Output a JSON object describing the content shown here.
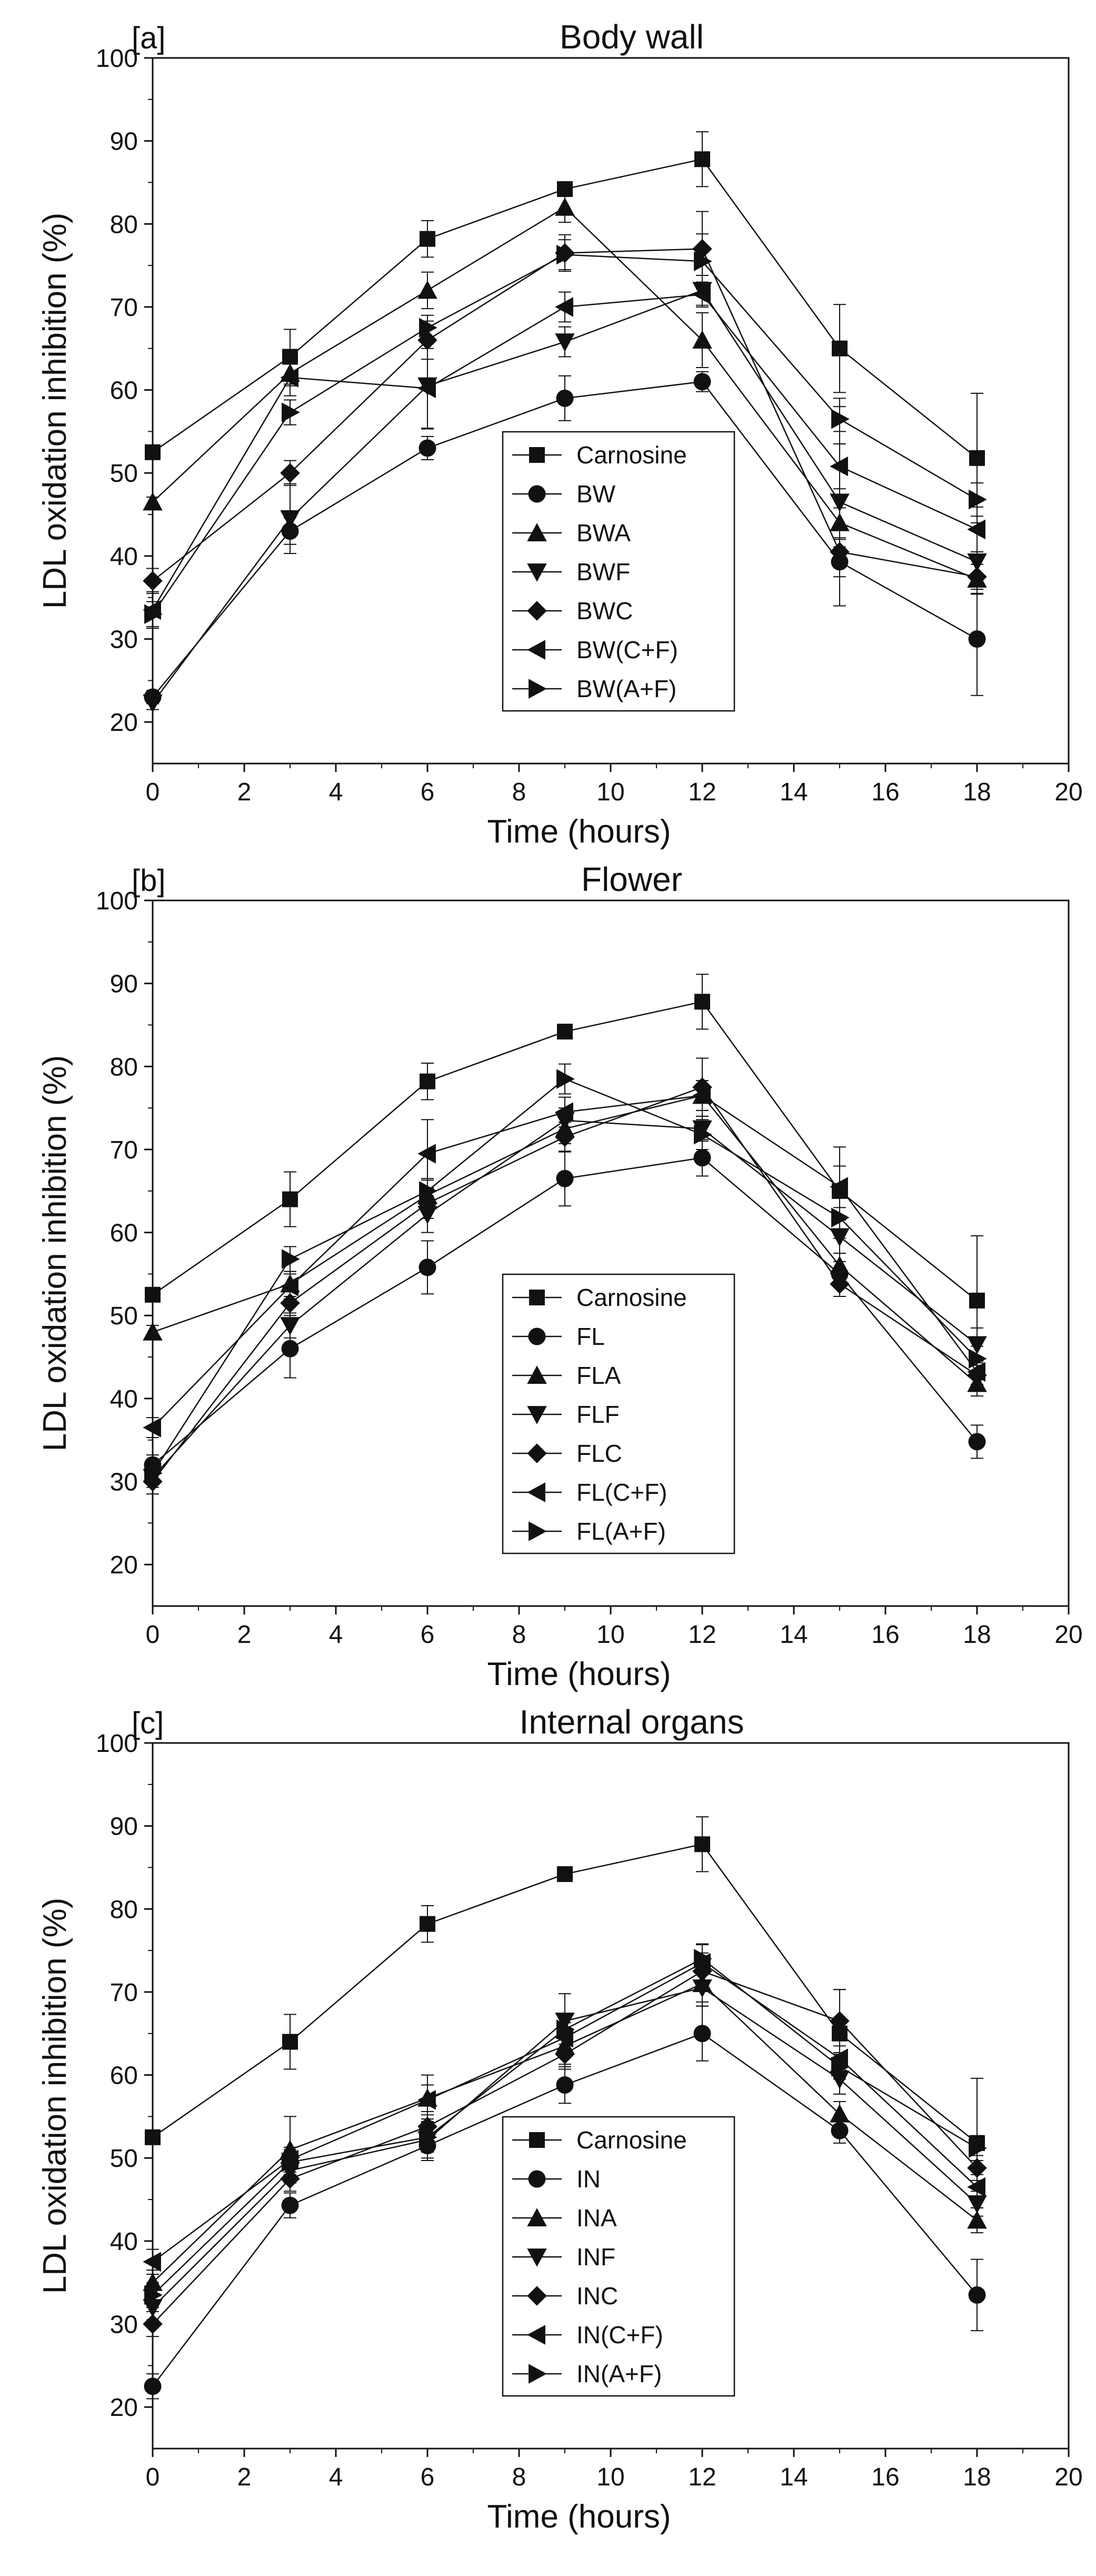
{
  "chart_data": [
    {
      "type": "line",
      "panel_label": "[a]",
      "title": "Body wall",
      "xlabel": "Time (hours)",
      "ylabel": "LDL oxidation inhibition (%)",
      "xlim": [
        0,
        20
      ],
      "ylim": [
        15,
        100
      ],
      "xticks": [
        0,
        2,
        4,
        6,
        8,
        10,
        12,
        14,
        16,
        18,
        20
      ],
      "yticks": [
        20,
        30,
        40,
        50,
        60,
        70,
        80,
        90,
        100
      ],
      "x": [
        0,
        3,
        6,
        9,
        12,
        15,
        18
      ],
      "legend_position": "bottom-center",
      "series": [
        {
          "name": "Carnosine",
          "marker": "square",
          "values": [
            52.5,
            64,
            78.2,
            84.2,
            87.8,
            65,
            51.8
          ],
          "errors": [
            0,
            3.3,
            2.2,
            0.8,
            3.3,
            5.3,
            7.8
          ]
        },
        {
          "name": "BW",
          "marker": "circle",
          "values": [
            23,
            43,
            53,
            59,
            61,
            39.3,
            30
          ],
          "errors": [
            0.8,
            1.6,
            1.4,
            2.7,
            1.2,
            1.8,
            6.8
          ]
        },
        {
          "name": "BWA",
          "marker": "triangle-up",
          "values": [
            46.5,
            62,
            72,
            82,
            66,
            44,
            37.2
          ],
          "errors": [
            0.6,
            1.5,
            2.2,
            1.8,
            3.3,
            1.8,
            1.8
          ]
        },
        {
          "name": "BWF",
          "marker": "triangle-down",
          "values": [
            22.3,
            44.5,
            60.5,
            65.8,
            72,
            46.5,
            39.3
          ],
          "errors": [
            0.8,
            4.2,
            5.2,
            1.8,
            1.8,
            12.5,
            3.8
          ]
        },
        {
          "name": "BWC",
          "marker": "diamond",
          "values": [
            37,
            50,
            66,
            76.5,
            77,
            40.5,
            37.5
          ],
          "errors": [
            1.5,
            1.5,
            2.3,
            2.2,
            4.5,
            1.5,
            1.5
          ]
        },
        {
          "name": "BW(C+F)",
          "marker": "triangle-left",
          "values": [
            33.5,
            61.5,
            60.2,
            70,
            71.5,
            50.8,
            43.2
          ],
          "errors": [
            2.2,
            2.2,
            4.8,
            1.8,
            1.5,
            2.7,
            2.7
          ]
        },
        {
          "name": "BW(A+F)",
          "marker": "triangle-right",
          "values": [
            33,
            57.3,
            67.5,
            76.3,
            75.5,
            56.5,
            46.8
          ],
          "errors": [
            1.5,
            1.5,
            1.5,
            1.8,
            3.3,
            1.5,
            2
          ]
        }
      ]
    },
    {
      "type": "line",
      "panel_label": "[b]",
      "title": "Flower",
      "xlabel": "Time (hours)",
      "ylabel": "LDL oxidation inhibition (%)",
      "xlim": [
        0,
        20
      ],
      "ylim": [
        15,
        100
      ],
      "xticks": [
        0,
        2,
        4,
        6,
        8,
        10,
        12,
        14,
        16,
        18,
        20
      ],
      "yticks": [
        20,
        30,
        40,
        50,
        60,
        70,
        80,
        90,
        100
      ],
      "x": [
        0,
        3,
        6,
        9,
        12,
        15,
        18
      ],
      "legend_position": "bottom-center",
      "series": [
        {
          "name": "Carnosine",
          "marker": "square",
          "values": [
            52.5,
            64,
            78.2,
            84.2,
            87.8,
            65,
            51.8
          ],
          "errors": [
            0,
            3.3,
            2.2,
            0.8,
            3.3,
            5.3,
            7.8
          ]
        },
        {
          "name": "FL",
          "marker": "circle",
          "values": [
            32,
            46,
            55.8,
            66.5,
            69,
            55,
            34.8
          ],
          "errors": [
            1.2,
            3.5,
            3.2,
            3.3,
            2.2,
            1.5,
            2
          ]
        },
        {
          "name": "FLA",
          "marker": "triangle-up",
          "values": [
            48,
            53.8,
            64.5,
            72.5,
            76.5,
            56,
            41.8
          ],
          "errors": [
            0.8,
            1.5,
            1.8,
            1.8,
            1.8,
            1.5,
            1.5
          ]
        },
        {
          "name": "FLF",
          "marker": "triangle-down",
          "values": [
            30.5,
            48.8,
            62.2,
            73.5,
            72.5,
            59.5,
            46.5
          ],
          "errors": [
            1.2,
            1.5,
            2.2,
            1.5,
            1.5,
            2,
            2
          ]
        },
        {
          "name": "FLC",
          "marker": "diamond",
          "values": [
            30,
            51.5,
            63.5,
            71.5,
            77.5,
            53.8,
            42.8
          ],
          "errors": [
            1.5,
            1.5,
            1.8,
            1.8,
            3.5,
            1.5,
            1.5
          ]
        },
        {
          "name": "FL(C+F)",
          "marker": "triangle-left",
          "values": [
            36.5,
            53.5,
            69.5,
            74.5,
            76.5,
            65.5,
            43.2
          ],
          "errors": [
            1.2,
            1.5,
            4.1,
            1.8,
            1.8,
            2.5,
            1.5
          ]
        },
        {
          "name": "FL(A+F)",
          "marker": "triangle-right",
          "values": [
            31,
            56.8,
            65,
            78.5,
            71.8,
            61.8,
            44.8
          ],
          "errors": [
            1.2,
            1.5,
            1.5,
            1.8,
            1.8,
            2.5,
            1.5
          ]
        }
      ]
    },
    {
      "type": "line",
      "panel_label": "[c]",
      "title": "Internal organs",
      "xlabel": "Time (hours)",
      "ylabel": "LDL oxidation inhibition (%)",
      "xlim": [
        0,
        20
      ],
      "ylim": [
        15,
        100
      ],
      "xticks": [
        0,
        2,
        4,
        6,
        8,
        10,
        12,
        14,
        16,
        18,
        20
      ],
      "yticks": [
        20,
        30,
        40,
        50,
        60,
        70,
        80,
        90,
        100
      ],
      "x": [
        0,
        3,
        6,
        9,
        12,
        15,
        18
      ],
      "legend_position": "bottom-center",
      "series": [
        {
          "name": "Carnosine",
          "marker": "square",
          "values": [
            52.5,
            64,
            78.2,
            84.2,
            87.8,
            65,
            51.8
          ],
          "errors": [
            0,
            3.3,
            2.2,
            0.8,
            3.3,
            5.3,
            7.8
          ]
        },
        {
          "name": "IN",
          "marker": "circle",
          "values": [
            22.5,
            44.3,
            51.5,
            58.8,
            65,
            53.3,
            33.5
          ],
          "errors": [
            1.5,
            1.5,
            1.5,
            2.2,
            3.3,
            1.5,
            4.3
          ]
        },
        {
          "name": "INA",
          "marker": "triangle-up",
          "values": [
            35,
            51,
            57.2,
            63.5,
            71,
            55.3,
            42.5
          ],
          "errors": [
            1.5,
            4,
            2.8,
            2.2,
            2.2,
            1.5,
            1.5
          ]
        },
        {
          "name": "INF",
          "marker": "triangle-down",
          "values": [
            32,
            48.5,
            52.2,
            66.5,
            70.5,
            59.5,
            44.5
          ],
          "errors": [
            1.5,
            1.5,
            2.5,
            3.3,
            2.2,
            1.8,
            1.5
          ]
        },
        {
          "name": "INC",
          "marker": "diamond",
          "values": [
            30,
            47.5,
            53.8,
            62.5,
            72.5,
            66.5,
            48.8
          ],
          "errors": [
            1.5,
            1.5,
            1.8,
            1.8,
            2.2,
            3.8,
            1.5
          ]
        },
        {
          "name": "IN(C+F)",
          "marker": "triangle-left",
          "values": [
            37.5,
            49.8,
            57,
            64.5,
            73.5,
            62,
            46.5
          ],
          "errors": [
            1.5,
            1.5,
            1.8,
            1.8,
            2.2,
            1.5,
            1.5
          ]
        },
        {
          "name": "IN(A+F)",
          "marker": "triangle-right",
          "values": [
            33.5,
            49.5,
            52.5,
            65.5,
            74,
            61,
            51.2
          ],
          "errors": [
            1.5,
            1.5,
            1.8,
            1.8,
            1.8,
            1.5,
            1.5
          ]
        }
      ]
    }
  ]
}
